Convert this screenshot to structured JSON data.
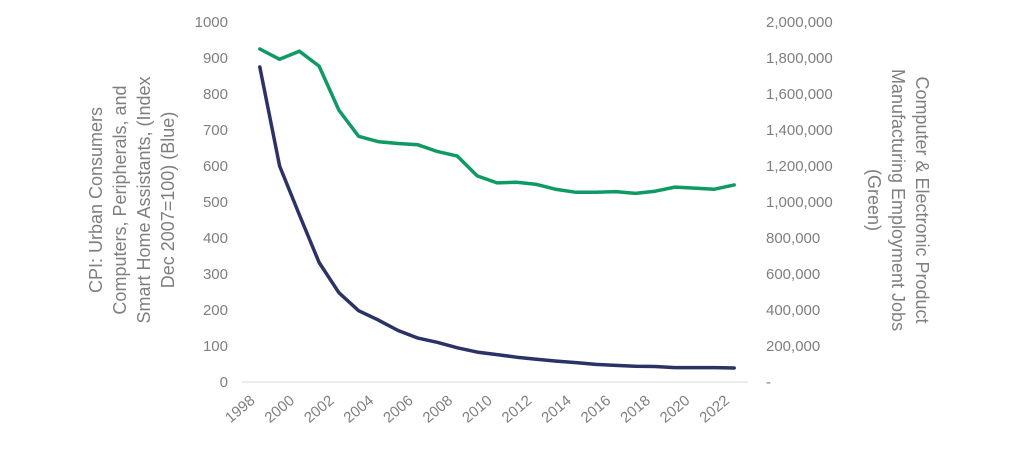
{
  "chart_data": {
    "type": "line",
    "x": [
      1998.5,
      1999.5,
      2000.5,
      2001.5,
      2002.5,
      2003.5,
      2004.5,
      2005.5,
      2006.5,
      2007.5,
      2008.5,
      2009.5,
      2010.5,
      2011.5,
      2012.5,
      2013.5,
      2014.5,
      2015.5,
      2016.5,
      2017.5,
      2018.5,
      2019.5,
      2020.5,
      2021.5,
      2022.5
    ],
    "xlim": [
      1997.6,
      2023.2
    ],
    "x_ticks": [
      1998,
      2000,
      2002,
      2004,
      2006,
      2008,
      2010,
      2012,
      2014,
      2016,
      2018,
      2020,
      2022
    ],
    "x_tick_labels": [
      "1998",
      "2000",
      "2002",
      "2004",
      "2006",
      "2008",
      "2010",
      "2012",
      "2014",
      "2016",
      "2018",
      "2020",
      "2022"
    ],
    "y_left": {
      "label_lines": [
        "CPI: Urban Consumers",
        "Computers, Peripherals, and",
        "Smart Home Assistants, (Index",
        "Dec 2007=100) (Blue)"
      ],
      "ylim": [
        0,
        1000
      ],
      "ticks": [
        0,
        100,
        200,
        300,
        400,
        500,
        600,
        700,
        800,
        900,
        1000
      ],
      "tick_labels": [
        "0",
        "100",
        "200",
        "300",
        "400",
        "500",
        "600",
        "700",
        "800",
        "900",
        "1000"
      ]
    },
    "y_right": {
      "label_lines": [
        "Computer & Electronic Product",
        "Manufacturing Employment Jobs",
        "(Green)"
      ],
      "ylim": [
        0,
        2000000
      ],
      "ticks": [
        0,
        200000,
        400000,
        600000,
        800000,
        1000000,
        1200000,
        1400000,
        1600000,
        1800000,
        2000000
      ],
      "tick_labels": [
        "-",
        "200,000",
        "400,000",
        "600,000",
        "800,000",
        "1,000,000",
        "1,200,000",
        "1,400,000",
        "1,600,000",
        "1,800,000",
        "2,000,000"
      ]
    },
    "series": [
      {
        "axis": "left",
        "color": "#2b3266",
        "values": [
          875,
          600,
          465,
          332,
          248,
          198,
          172,
          143,
          122,
          110,
          95,
          83,
          76,
          69,
          63,
          58,
          54,
          49,
          46,
          44,
          43,
          40,
          40,
          40,
          39
        ]
      },
      {
        "axis": "right",
        "color": "#0f9a64",
        "values": [
          1850000,
          1793000,
          1838000,
          1755000,
          1510000,
          1365000,
          1335000,
          1325000,
          1318000,
          1280000,
          1255000,
          1145000,
          1106000,
          1110000,
          1098000,
          1070000,
          1054000,
          1054000,
          1058000,
          1048000,
          1060000,
          1083000,
          1077000,
          1071000,
          1095000
        ]
      }
    ],
    "grid": false,
    "legend": "none"
  }
}
